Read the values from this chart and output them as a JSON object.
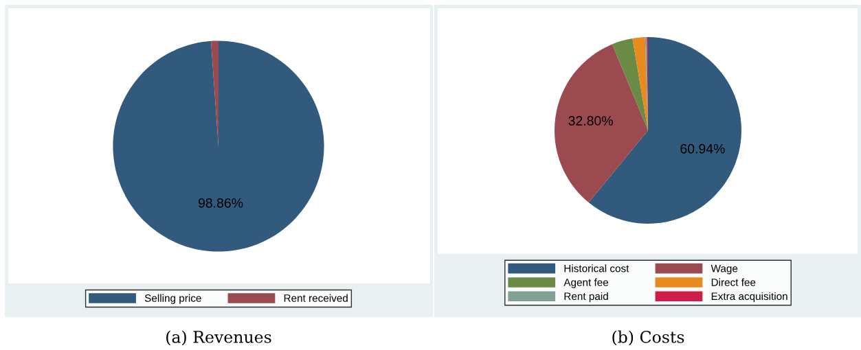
{
  "chart_data": [
    {
      "type": "pie",
      "categories": [
        "Selling price",
        "Rent received"
      ],
      "values": [
        98.86,
        1.14
      ],
      "colors": [
        "#325a7d",
        "#9b4a4f"
      ],
      "value_labels": [
        "98.86%",
        null
      ],
      "legend": "bottom",
      "annotations": [
        "(a) Revenues"
      ]
    },
    {
      "type": "pie",
      "categories": [
        "Historical cost",
        "Wage",
        "Agent fee",
        "Direct fee",
        "Rent paid",
        "Extra acquisition"
      ],
      "values": [
        60.94,
        32.8,
        3.6,
        2.16,
        0.3,
        0.2
      ],
      "colors": [
        "#325a7d",
        "#9b4a4f",
        "#6b8a45",
        "#e88a1e",
        "#82a095",
        "#d01c4a"
      ],
      "value_labels": [
        "60.94%",
        "32.80%",
        null,
        null,
        null,
        null
      ],
      "legend": "bottom",
      "annotations": [
        "(b) Costs"
      ]
    }
  ]
}
